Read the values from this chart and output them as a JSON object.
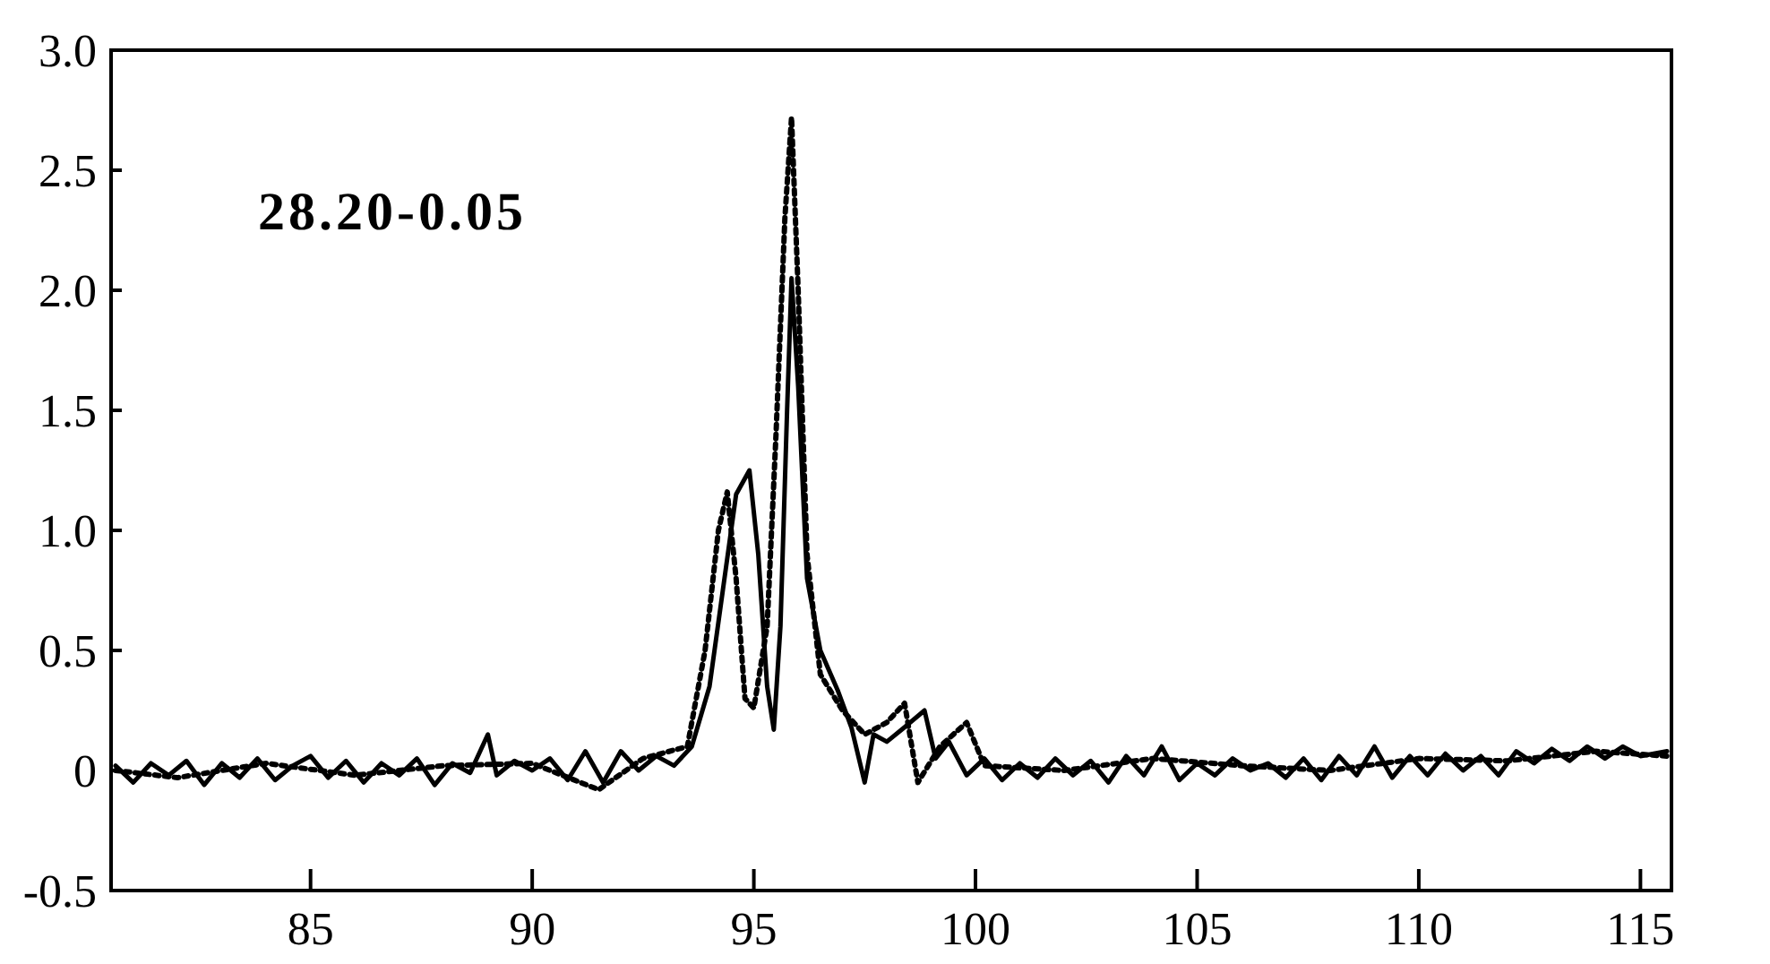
{
  "chart_data": {
    "type": "line",
    "annotations": [
      "28.20-0.05"
    ],
    "xlim": [
      80.5,
      115.7
    ],
    "xticks": [
      85,
      90,
      95,
      100,
      105,
      110,
      115
    ],
    "ylim": [
      -0.5,
      3.0
    ],
    "yticks": [
      -0.5,
      0,
      0.5,
      {
        "value": 1,
        "label": "1.0"
      },
      1.5,
      {
        "value": 2,
        "label": "2.0"
      },
      2.5,
      {
        "value": 3,
        "label": "3.0"
      }
    ],
    "grid": false,
    "series": [
      {
        "color": "#000000",
        "line_style": "solid",
        "x": [
          80.6,
          81.0,
          81.4,
          81.8,
          82.2,
          82.6,
          83.0,
          83.4,
          83.8,
          84.2,
          84.6,
          85.0,
          85.4,
          85.8,
          86.2,
          86.6,
          87.0,
          87.4,
          87.8,
          88.2,
          88.6,
          89.0,
          89.2,
          89.6,
          90.0,
          90.4,
          90.8,
          91.2,
          91.6,
          92.0,
          92.4,
          92.8,
          93.2,
          93.6,
          94.0,
          94.3,
          94.6,
          94.9,
          95.1,
          95.3,
          95.45,
          95.6,
          95.75,
          95.85,
          96.0,
          96.2,
          96.5,
          96.9,
          97.2,
          97.5,
          97.7,
          98.0,
          98.4,
          98.85,
          99.1,
          99.4,
          99.8,
          100.2,
          100.6,
          101.0,
          101.4,
          101.8,
          102.2,
          102.6,
          103.0,
          103.4,
          103.8,
          104.2,
          104.6,
          105.0,
          105.4,
          105.8,
          106.2,
          106.6,
          107.0,
          107.4,
          107.8,
          108.2,
          108.6,
          109.0,
          109.4,
          109.8,
          110.2,
          110.6,
          111.0,
          111.4,
          111.8,
          112.2,
          112.6,
          113.0,
          113.4,
          113.8,
          114.2,
          114.6,
          115.0,
          115.6
        ],
        "values": [
          0.02,
          -0.05,
          0.03,
          -0.02,
          0.04,
          -0.06,
          0.03,
          -0.03,
          0.05,
          -0.04,
          0.02,
          0.06,
          -0.03,
          0.04,
          -0.05,
          0.03,
          -0.02,
          0.05,
          -0.06,
          0.03,
          -0.01,
          0.15,
          -0.02,
          0.04,
          0.0,
          0.05,
          -0.04,
          0.08,
          -0.05,
          0.08,
          0.0,
          0.06,
          0.02,
          0.1,
          0.35,
          0.75,
          1.15,
          1.25,
          0.9,
          0.35,
          0.17,
          0.6,
          1.5,
          2.05,
          1.6,
          0.8,
          0.5,
          0.33,
          0.18,
          -0.05,
          0.15,
          0.12,
          0.18,
          0.25,
          0.05,
          0.12,
          -0.02,
          0.05,
          -0.04,
          0.03,
          -0.03,
          0.05,
          -0.02,
          0.04,
          -0.05,
          0.06,
          -0.02,
          0.1,
          -0.04,
          0.03,
          -0.02,
          0.05,
          0.0,
          0.03,
          -0.03,
          0.05,
          -0.04,
          0.06,
          -0.02,
          0.1,
          -0.03,
          0.06,
          -0.02,
          0.07,
          0.0,
          0.06,
          -0.02,
          0.08,
          0.03,
          0.09,
          0.04,
          0.1,
          0.05,
          0.1,
          0.06,
          0.08
        ]
      },
      {
        "color": "#000000",
        "line_style": "dotted",
        "x": [
          80.6,
          82,
          84,
          86,
          88,
          90,
          91.5,
          92.5,
          93.5,
          93.9,
          94.2,
          94.4,
          94.6,
          94.8,
          95.0,
          95.3,
          95.5,
          95.7,
          95.85,
          96.0,
          96.2,
          96.5,
          97.0,
          97.5,
          98.0,
          98.4,
          98.7,
          99.2,
          99.8,
          100.2,
          102,
          104,
          106,
          108,
          110,
          112,
          114,
          115.6
        ],
        "values": [
          0.0,
          -0.03,
          0.03,
          -0.02,
          0.02,
          0.03,
          -0.08,
          0.05,
          0.1,
          0.5,
          1.0,
          1.16,
          0.8,
          0.3,
          0.26,
          0.6,
          1.4,
          2.3,
          2.72,
          2.0,
          0.9,
          0.4,
          0.25,
          0.15,
          0.2,
          0.28,
          -0.05,
          0.1,
          0.2,
          0.02,
          0.0,
          0.05,
          0.02,
          0.0,
          0.05,
          0.04,
          0.08,
          0.06
        ]
      }
    ]
  }
}
